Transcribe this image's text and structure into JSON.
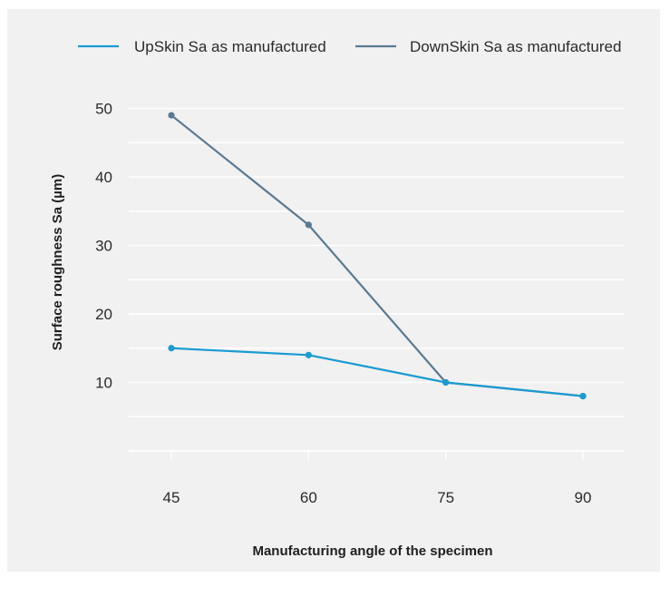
{
  "chart_data": {
    "type": "line",
    "xlabel": "Manufacturing angle of the specimen",
    "ylabel": "Surface roughness Sa (µm)",
    "categories": [
      "45",
      "60",
      "75",
      "90"
    ],
    "x": [
      45,
      60,
      75,
      90
    ],
    "ylim": [
      0,
      50
    ],
    "yticks": [
      10,
      20,
      30,
      40,
      50
    ],
    "grid": true,
    "legend_position": "top",
    "series": [
      {
        "name": "UpSkin Sa as manufactured",
        "values": [
          15,
          14,
          10,
          8
        ],
        "color": "#1a9bd1"
      },
      {
        "name": "DownSkin Sa as manufactured",
        "values": [
          49,
          33,
          10,
          8
        ],
        "color": "#5a7a92"
      }
    ]
  }
}
